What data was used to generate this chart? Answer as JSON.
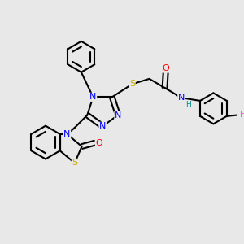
{
  "background_color": "#e8e8e8",
  "bond_color": "#000000",
  "atom_colors": {
    "N": "#0000ff",
    "O": "#ff0000",
    "S": "#ccaa00",
    "F": "#ff44cc",
    "H": "#008888",
    "C": "#000000"
  },
  "figsize": [
    3.0,
    3.0
  ],
  "dpi": 100
}
